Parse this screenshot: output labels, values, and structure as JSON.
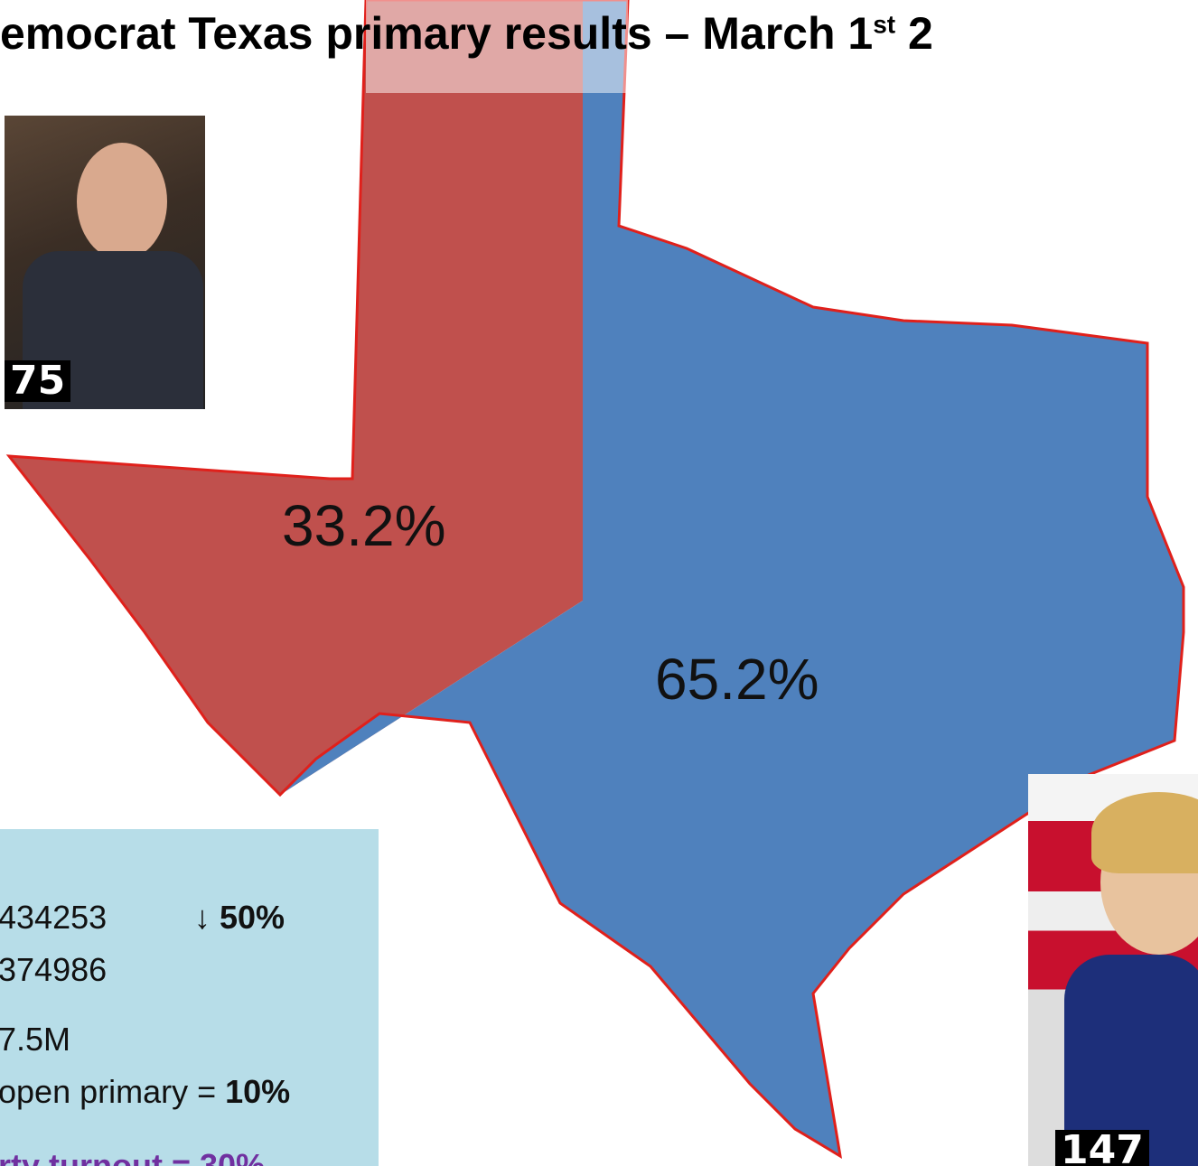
{
  "slide": {
    "title": {
      "main": "emocrat Texas primary results – March 1",
      "sup": "st",
      "tail": " 2"
    },
    "candidates": [
      {
        "delegates": "75",
        "share": "33.2%"
      },
      {
        "delegates": "147",
        "share": "65.2%"
      }
    ],
    "info": {
      "line1": "434253",
      "change_arrow": "↓",
      "change": "50%",
      "line2": "374986",
      "line3": "7.5M",
      "line4": "open primary = ",
      "line4_value": "10%",
      "line5": "rty turnout = 30%"
    }
  }
}
